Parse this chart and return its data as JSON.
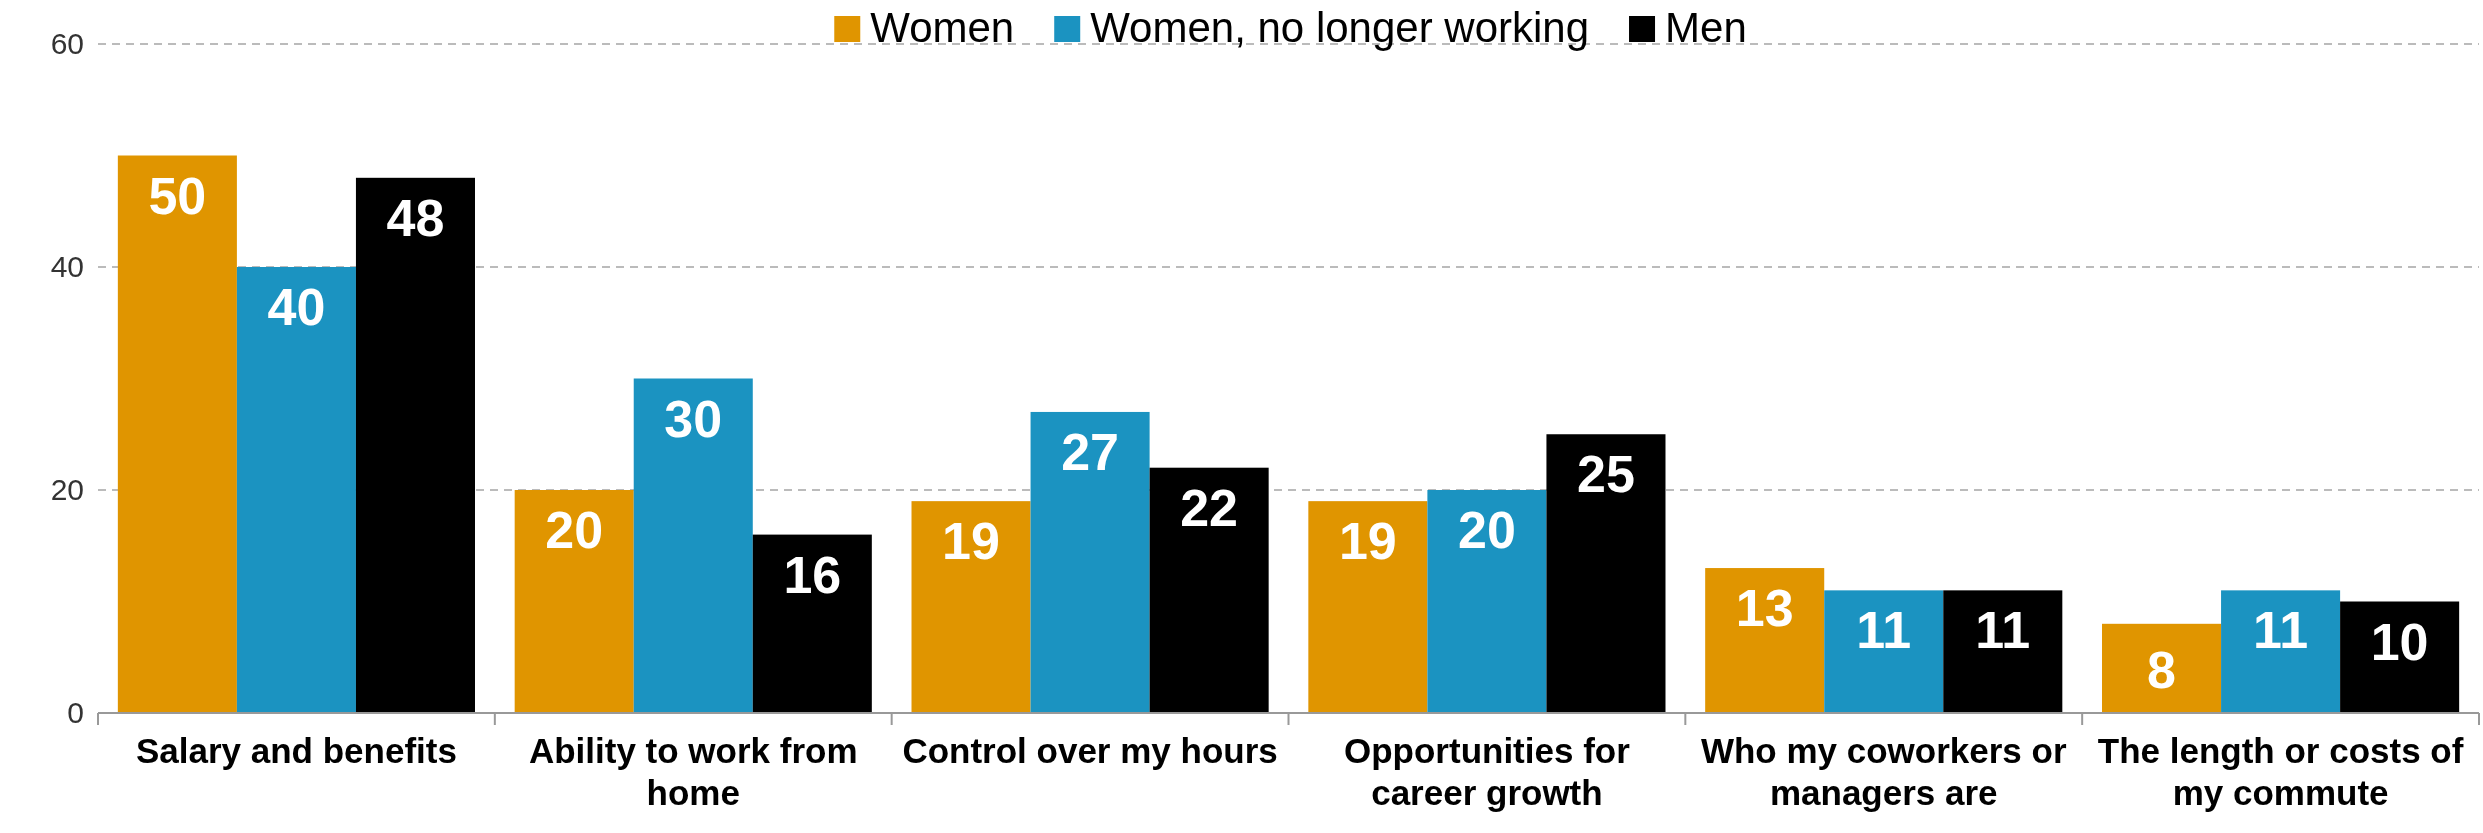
{
  "chart_data": {
    "type": "bar",
    "categories": [
      "Salary and benefits",
      "Ability to work from home",
      "Control over my hours",
      "Opportunities for career growth",
      "Who my coworkers or managers are",
      "The length or costs of my commute"
    ],
    "series": [
      {
        "name": "Women",
        "color": "#e09500",
        "values": [
          50,
          20,
          19,
          19,
          13,
          8
        ]
      },
      {
        "name": "Women, no longer working",
        "color": "#1b93c1",
        "values": [
          40,
          30,
          27,
          20,
          11,
          11
        ]
      },
      {
        "name": "Men",
        "color": "#000000",
        "values": [
          48,
          16,
          22,
          25,
          11,
          10
        ]
      }
    ],
    "ylim": [
      0,
      60
    ],
    "yticks": [
      0,
      20,
      40,
      60
    ],
    "grid": "y",
    "legend": "top",
    "data_labels": true
  }
}
